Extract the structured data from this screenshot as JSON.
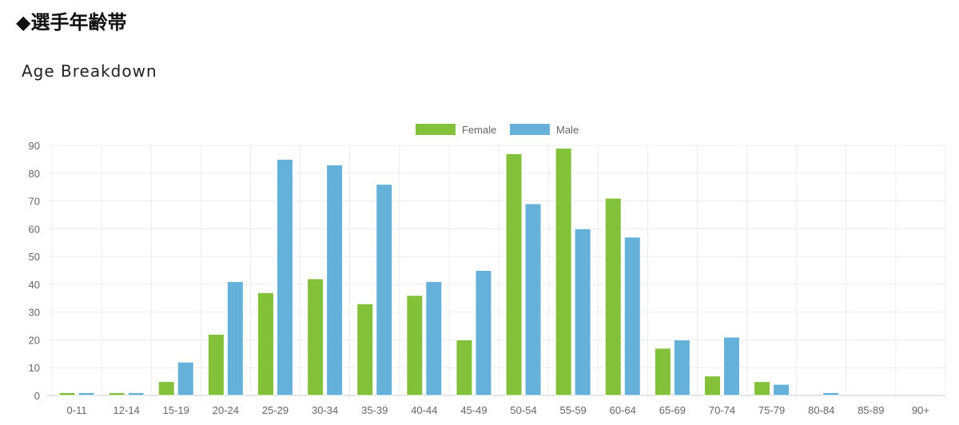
{
  "page": {
    "section_title": "◆選手年齢帯",
    "chart_heading": "Age Breakdown"
  },
  "chart_data": {
    "type": "bar",
    "title": "Age Breakdown",
    "categories": [
      "0-11",
      "12-14",
      "15-19",
      "20-24",
      "25-29",
      "30-34",
      "35-39",
      "40-44",
      "45-49",
      "50-54",
      "55-59",
      "60-64",
      "65-69",
      "70-74",
      "75-79",
      "80-84",
      "85-89",
      "90+"
    ],
    "series": [
      {
        "name": "Female",
        "color": "#84c13b",
        "values": [
          1,
          1,
          5,
          22,
          37,
          42,
          33,
          36,
          20,
          87,
          89,
          71,
          17,
          7,
          5,
          0,
          0,
          0
        ]
      },
      {
        "name": "Male",
        "color": "#65b1d9",
        "values": [
          1,
          1,
          12,
          41,
          85,
          83,
          76,
          41,
          45,
          69,
          60,
          57,
          20,
          21,
          4,
          1,
          0,
          0
        ]
      }
    ],
    "xlabel": "",
    "ylabel": "",
    "ylim": [
      0,
      90
    ],
    "yticks": [
      0,
      10,
      20,
      30,
      40,
      50,
      60,
      70,
      80,
      90
    ],
    "grid": true,
    "legend": "top-center"
  }
}
